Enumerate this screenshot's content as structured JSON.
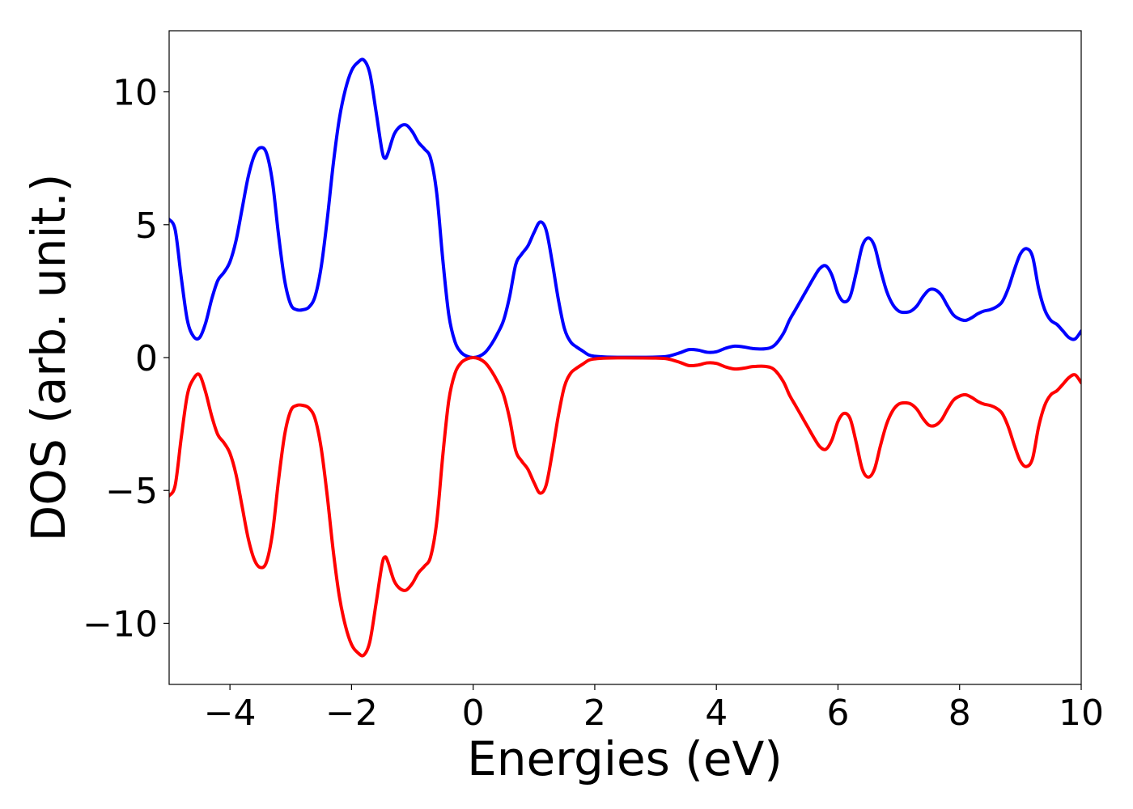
{
  "chart_data": {
    "type": "line",
    "xlabel": "Energies (eV)",
    "ylabel": "DOS (arb. unit.)",
    "xlim": [
      -5,
      10
    ],
    "ylim": [
      -12.3,
      12.3
    ],
    "xticks": [
      -4,
      -2,
      0,
      2,
      4,
      6,
      8,
      10
    ],
    "xtick_labels": [
      "−4",
      "−2",
      "0",
      "2",
      "4",
      "6",
      "8",
      "10"
    ],
    "yticks": [
      -10,
      -5,
      0,
      5,
      10
    ],
    "ytick_labels": [
      "−10",
      "−5",
      "0",
      "5",
      "10"
    ],
    "grid": false,
    "series": [
      {
        "color": "#0000ff",
        "points": [
          [
            -5.0,
            5.2
          ],
          [
            -4.9,
            4.8
          ],
          [
            -4.8,
            3.0
          ],
          [
            -4.7,
            1.4
          ],
          [
            -4.6,
            0.8
          ],
          [
            -4.5,
            0.75
          ],
          [
            -4.4,
            1.3
          ],
          [
            -4.3,
            2.2
          ],
          [
            -4.2,
            2.9
          ],
          [
            -4.1,
            3.2
          ],
          [
            -4.0,
            3.6
          ],
          [
            -3.9,
            4.4
          ],
          [
            -3.8,
            5.6
          ],
          [
            -3.7,
            6.8
          ],
          [
            -3.6,
            7.6
          ],
          [
            -3.5,
            7.9
          ],
          [
            -3.4,
            7.7
          ],
          [
            -3.3,
            6.6
          ],
          [
            -3.2,
            4.6
          ],
          [
            -3.1,
            2.9
          ],
          [
            -3.0,
            2.0
          ],
          [
            -2.9,
            1.8
          ],
          [
            -2.8,
            1.8
          ],
          [
            -2.7,
            1.9
          ],
          [
            -2.6,
            2.3
          ],
          [
            -2.5,
            3.4
          ],
          [
            -2.4,
            5.2
          ],
          [
            -2.3,
            7.3
          ],
          [
            -2.2,
            9.0
          ],
          [
            -2.1,
            10.1
          ],
          [
            -2.0,
            10.8
          ],
          [
            -1.9,
            11.1
          ],
          [
            -1.8,
            11.2
          ],
          [
            -1.7,
            10.7
          ],
          [
            -1.6,
            9.3
          ],
          [
            -1.5,
            7.8
          ],
          [
            -1.45,
            7.5
          ],
          [
            -1.4,
            7.7
          ],
          [
            -1.3,
            8.4
          ],
          [
            -1.2,
            8.7
          ],
          [
            -1.1,
            8.75
          ],
          [
            -1.0,
            8.5
          ],
          [
            -0.9,
            8.1
          ],
          [
            -0.8,
            7.85
          ],
          [
            -0.7,
            7.5
          ],
          [
            -0.6,
            6.2
          ],
          [
            -0.5,
            3.7
          ],
          [
            -0.4,
            1.6
          ],
          [
            -0.3,
            0.6
          ],
          [
            -0.2,
            0.2
          ],
          [
            -0.1,
            0.05
          ],
          [
            0.0,
            0.0
          ],
          [
            0.1,
            0.05
          ],
          [
            0.2,
            0.2
          ],
          [
            0.3,
            0.5
          ],
          [
            0.4,
            0.9
          ],
          [
            0.5,
            1.4
          ],
          [
            0.6,
            2.3
          ],
          [
            0.7,
            3.5
          ],
          [
            0.8,
            3.9
          ],
          [
            0.9,
            4.2
          ],
          [
            1.0,
            4.7
          ],
          [
            1.1,
            5.1
          ],
          [
            1.2,
            4.8
          ],
          [
            1.3,
            3.6
          ],
          [
            1.4,
            2.2
          ],
          [
            1.5,
            1.1
          ],
          [
            1.6,
            0.6
          ],
          [
            1.7,
            0.4
          ],
          [
            1.8,
            0.25
          ],
          [
            1.9,
            0.1
          ],
          [
            2.0,
            0.05
          ],
          [
            2.2,
            0.02
          ],
          [
            2.5,
            0.01
          ],
          [
            3.0,
            0.02
          ],
          [
            3.2,
            0.05
          ],
          [
            3.4,
            0.18
          ],
          [
            3.55,
            0.3
          ],
          [
            3.7,
            0.28
          ],
          [
            3.85,
            0.2
          ],
          [
            4.0,
            0.22
          ],
          [
            4.15,
            0.35
          ],
          [
            4.3,
            0.43
          ],
          [
            4.45,
            0.4
          ],
          [
            4.6,
            0.34
          ],
          [
            4.8,
            0.33
          ],
          [
            4.95,
            0.45
          ],
          [
            5.1,
            0.9
          ],
          [
            5.2,
            1.4
          ],
          [
            5.3,
            1.8
          ],
          [
            5.4,
            2.2
          ],
          [
            5.5,
            2.6
          ],
          [
            5.6,
            3.0
          ],
          [
            5.7,
            3.35
          ],
          [
            5.8,
            3.45
          ],
          [
            5.9,
            3.1
          ],
          [
            6.0,
            2.4
          ],
          [
            6.1,
            2.1
          ],
          [
            6.2,
            2.3
          ],
          [
            6.3,
            3.2
          ],
          [
            6.4,
            4.2
          ],
          [
            6.5,
            4.5
          ],
          [
            6.6,
            4.2
          ],
          [
            6.7,
            3.3
          ],
          [
            6.8,
            2.5
          ],
          [
            6.9,
            2.0
          ],
          [
            7.0,
            1.75
          ],
          [
            7.1,
            1.7
          ],
          [
            7.2,
            1.75
          ],
          [
            7.3,
            1.95
          ],
          [
            7.4,
            2.3
          ],
          [
            7.5,
            2.55
          ],
          [
            7.6,
            2.55
          ],
          [
            7.7,
            2.35
          ],
          [
            7.8,
            1.95
          ],
          [
            7.9,
            1.6
          ],
          [
            8.0,
            1.45
          ],
          [
            8.1,
            1.4
          ],
          [
            8.2,
            1.5
          ],
          [
            8.3,
            1.65
          ],
          [
            8.4,
            1.75
          ],
          [
            8.5,
            1.8
          ],
          [
            8.6,
            1.9
          ],
          [
            8.7,
            2.1
          ],
          [
            8.8,
            2.6
          ],
          [
            8.9,
            3.3
          ],
          [
            9.0,
            3.9
          ],
          [
            9.1,
            4.1
          ],
          [
            9.2,
            3.8
          ],
          [
            9.3,
            2.6
          ],
          [
            9.4,
            1.8
          ],
          [
            9.5,
            1.4
          ],
          [
            9.6,
            1.25
          ],
          [
            9.7,
            1.0
          ],
          [
            9.8,
            0.75
          ],
          [
            9.9,
            0.7
          ],
          [
            10.0,
            1.0
          ]
        ]
      },
      {
        "color": "#ff0000",
        "points": [
          [
            -5.0,
            -5.2
          ],
          [
            -4.9,
            -4.8
          ],
          [
            -4.8,
            -3.0
          ],
          [
            -4.7,
            -1.4
          ],
          [
            -4.6,
            -0.8
          ],
          [
            -4.5,
            -0.65
          ],
          [
            -4.4,
            -1.3
          ],
          [
            -4.3,
            -2.2
          ],
          [
            -4.2,
            -2.9
          ],
          [
            -4.1,
            -3.2
          ],
          [
            -4.0,
            -3.6
          ],
          [
            -3.9,
            -4.4
          ],
          [
            -3.8,
            -5.6
          ],
          [
            -3.7,
            -6.8
          ],
          [
            -3.6,
            -7.6
          ],
          [
            -3.5,
            -7.9
          ],
          [
            -3.4,
            -7.7
          ],
          [
            -3.3,
            -6.6
          ],
          [
            -3.2,
            -4.6
          ],
          [
            -3.1,
            -2.9
          ],
          [
            -3.0,
            -2.0
          ],
          [
            -2.9,
            -1.8
          ],
          [
            -2.8,
            -1.8
          ],
          [
            -2.7,
            -1.9
          ],
          [
            -2.6,
            -2.3
          ],
          [
            -2.5,
            -3.4
          ],
          [
            -2.4,
            -5.2
          ],
          [
            -2.3,
            -7.3
          ],
          [
            -2.2,
            -9.0
          ],
          [
            -2.1,
            -10.1
          ],
          [
            -2.0,
            -10.8
          ],
          [
            -1.9,
            -11.1
          ],
          [
            -1.8,
            -11.2
          ],
          [
            -1.7,
            -10.7
          ],
          [
            -1.6,
            -9.3
          ],
          [
            -1.5,
            -7.8
          ],
          [
            -1.45,
            -7.5
          ],
          [
            -1.4,
            -7.7
          ],
          [
            -1.3,
            -8.4
          ],
          [
            -1.2,
            -8.7
          ],
          [
            -1.1,
            -8.75
          ],
          [
            -1.0,
            -8.5
          ],
          [
            -0.9,
            -8.1
          ],
          [
            -0.8,
            -7.85
          ],
          [
            -0.7,
            -7.5
          ],
          [
            -0.6,
            -6.2
          ],
          [
            -0.5,
            -3.7
          ],
          [
            -0.4,
            -1.6
          ],
          [
            -0.3,
            -0.6
          ],
          [
            -0.2,
            -0.2
          ],
          [
            -0.1,
            -0.05
          ],
          [
            0.0,
            0.0
          ],
          [
            0.1,
            -0.05
          ],
          [
            0.2,
            -0.2
          ],
          [
            0.3,
            -0.5
          ],
          [
            0.4,
            -0.9
          ],
          [
            0.5,
            -1.4
          ],
          [
            0.6,
            -2.3
          ],
          [
            0.7,
            -3.5
          ],
          [
            0.8,
            -3.9
          ],
          [
            0.9,
            -4.2
          ],
          [
            1.0,
            -4.7
          ],
          [
            1.1,
            -5.1
          ],
          [
            1.2,
            -4.8
          ],
          [
            1.3,
            -3.6
          ],
          [
            1.4,
            -2.2
          ],
          [
            1.5,
            -1.1
          ],
          [
            1.6,
            -0.6
          ],
          [
            1.7,
            -0.4
          ],
          [
            1.8,
            -0.25
          ],
          [
            1.9,
            -0.1
          ],
          [
            2.0,
            -0.05
          ],
          [
            2.2,
            -0.02
          ],
          [
            2.5,
            -0.01
          ],
          [
            3.0,
            -0.02
          ],
          [
            3.2,
            -0.05
          ],
          [
            3.4,
            -0.18
          ],
          [
            3.55,
            -0.3
          ],
          [
            3.7,
            -0.28
          ],
          [
            3.85,
            -0.2
          ],
          [
            4.0,
            -0.22
          ],
          [
            4.15,
            -0.35
          ],
          [
            4.3,
            -0.43
          ],
          [
            4.45,
            -0.4
          ],
          [
            4.6,
            -0.34
          ],
          [
            4.8,
            -0.33
          ],
          [
            4.95,
            -0.45
          ],
          [
            5.1,
            -0.9
          ],
          [
            5.2,
            -1.4
          ],
          [
            5.3,
            -1.8
          ],
          [
            5.4,
            -2.2
          ],
          [
            5.5,
            -2.6
          ],
          [
            5.6,
            -3.0
          ],
          [
            5.7,
            -3.35
          ],
          [
            5.8,
            -3.45
          ],
          [
            5.9,
            -3.1
          ],
          [
            6.0,
            -2.4
          ],
          [
            6.1,
            -2.1
          ],
          [
            6.2,
            -2.3
          ],
          [
            6.3,
            -3.2
          ],
          [
            6.4,
            -4.2
          ],
          [
            6.5,
            -4.5
          ],
          [
            6.6,
            -4.2
          ],
          [
            6.7,
            -3.3
          ],
          [
            6.8,
            -2.5
          ],
          [
            6.9,
            -2.0
          ],
          [
            7.0,
            -1.75
          ],
          [
            7.1,
            -1.7
          ],
          [
            7.2,
            -1.75
          ],
          [
            7.3,
            -1.95
          ],
          [
            7.4,
            -2.3
          ],
          [
            7.5,
            -2.55
          ],
          [
            7.6,
            -2.55
          ],
          [
            7.7,
            -2.35
          ],
          [
            7.8,
            -1.95
          ],
          [
            7.9,
            -1.6
          ],
          [
            8.0,
            -1.45
          ],
          [
            8.1,
            -1.4
          ],
          [
            8.2,
            -1.5
          ],
          [
            8.3,
            -1.65
          ],
          [
            8.4,
            -1.75
          ],
          [
            8.5,
            -1.8
          ],
          [
            8.6,
            -1.9
          ],
          [
            8.7,
            -2.1
          ],
          [
            8.8,
            -2.6
          ],
          [
            8.9,
            -3.3
          ],
          [
            9.0,
            -3.9
          ],
          [
            9.1,
            -4.1
          ],
          [
            9.2,
            -3.8
          ],
          [
            9.3,
            -2.6
          ],
          [
            9.4,
            -1.8
          ],
          [
            9.5,
            -1.4
          ],
          [
            9.6,
            -1.25
          ],
          [
            9.7,
            -1.0
          ],
          [
            9.8,
            -0.75
          ],
          [
            9.9,
            -0.65
          ],
          [
            10.0,
            -0.95
          ]
        ]
      }
    ]
  }
}
